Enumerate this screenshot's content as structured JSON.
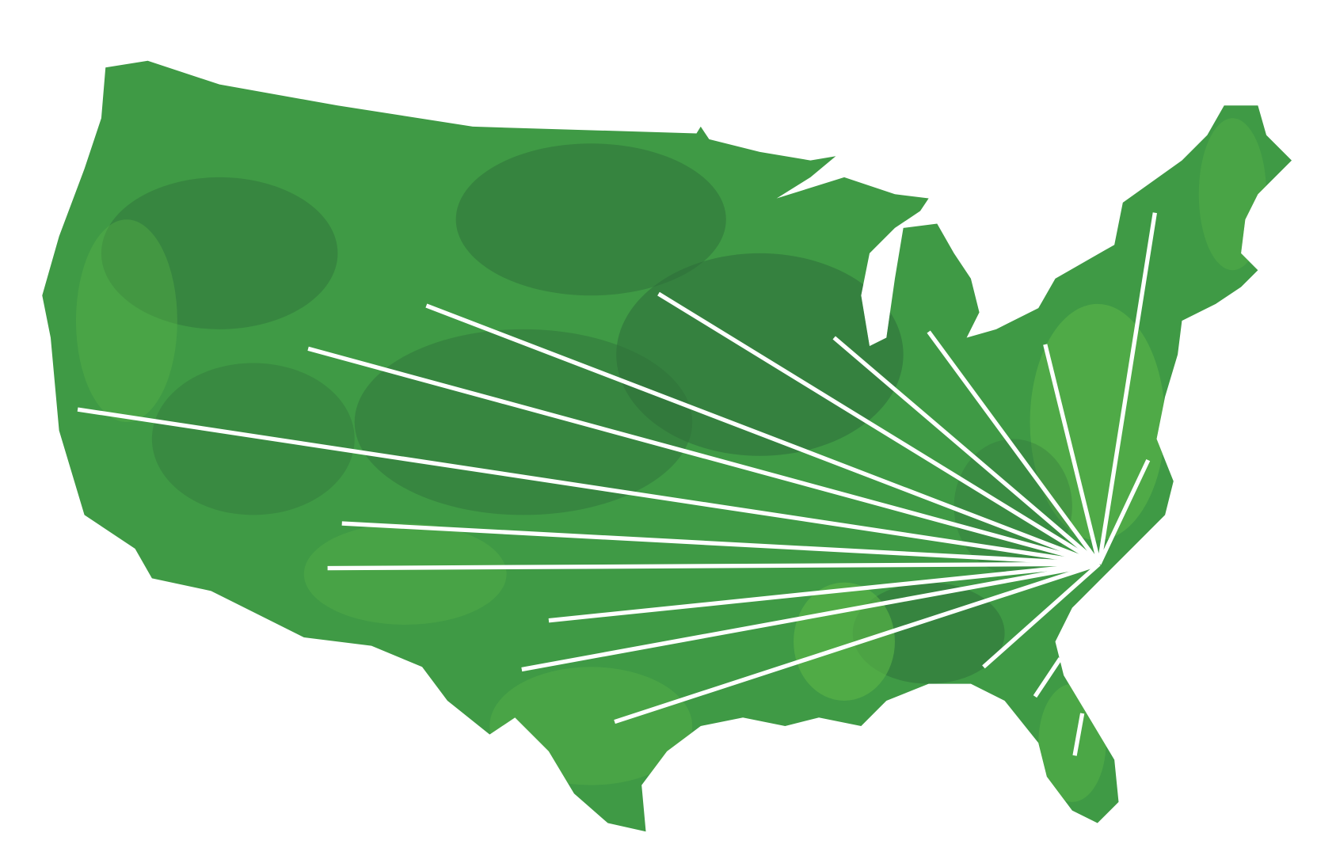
{
  "map": {
    "colors": {
      "background": "#ffffff",
      "land_base": "#3f9a45",
      "land_light": "#5cb848",
      "land_dark": "#2e6e3a",
      "route_lines": "#ffffff"
    }
  }
}
